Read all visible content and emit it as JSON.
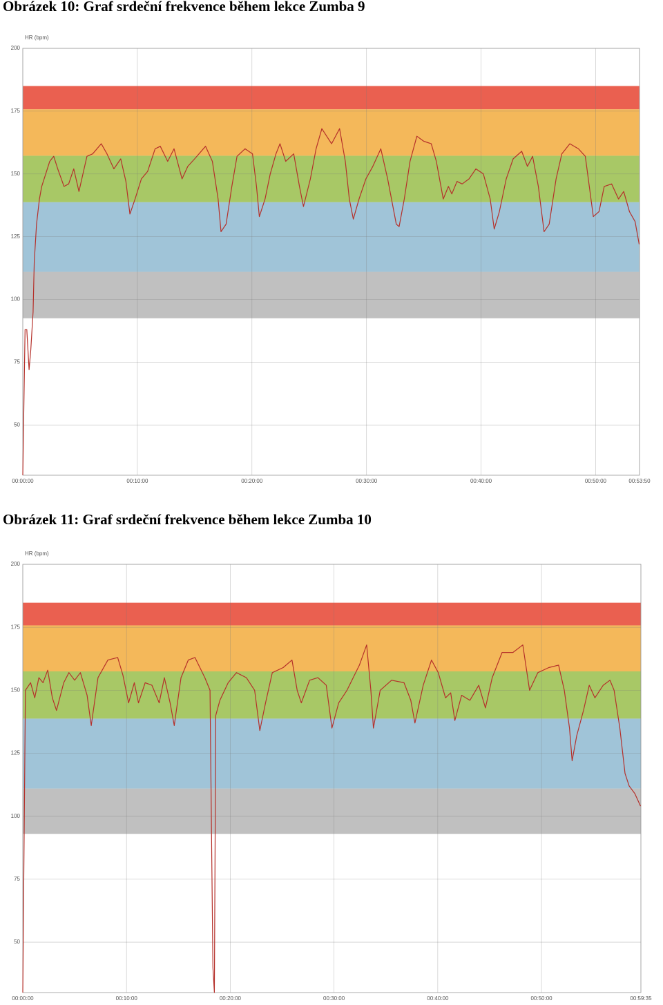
{
  "chart_data": [
    {
      "type": "line",
      "title": "Obrázek 10: Graf srdeční frekvence během lekce Zumba 9",
      "ylabel": "HR (bpm)",
      "color": "#b5302a",
      "grid": true,
      "ylim": [
        30,
        200
      ],
      "yticks": [
        50,
        75,
        100,
        125,
        150,
        175,
        200
      ],
      "xlim": [
        0,
        53.833
      ],
      "xticks": [
        {
          "value": 0,
          "label": "00:00:00"
        },
        {
          "value": 10,
          "label": "00:10:00"
        },
        {
          "value": 20,
          "label": "00:20:00"
        },
        {
          "value": 30,
          "label": "00:30:00"
        },
        {
          "value": 40,
          "label": "00:40:00"
        },
        {
          "value": 50,
          "label": "00:50:00"
        },
        {
          "value": 53.833,
          "label": "00:53:50"
        }
      ],
      "zones": [
        {
          "from": 92.5,
          "to": 111,
          "color": "#c0c0c0"
        },
        {
          "from": 111,
          "to": 138.75,
          "color": "#a0c4d8"
        },
        {
          "from": 138.75,
          "to": 157.25,
          "color": "#a8c866"
        },
        {
          "from": 157.25,
          "to": 175.75,
          "color": "#f4b85a"
        },
        {
          "from": 175.75,
          "to": 185,
          "color": "#ea6050"
        }
      ],
      "x": [
        0,
        0.2,
        0.35,
        0.55,
        0.7,
        0.9,
        1.0,
        1.2,
        1.45,
        1.65,
        2.0,
        2.35,
        2.7,
        3.05,
        3.6,
        4.0,
        4.45,
        4.9,
        5.25,
        5.6,
        6.1,
        6.85,
        7.35,
        7.95,
        8.55,
        9.0,
        9.35,
        9.8,
        10.35,
        10.9,
        11.55,
        12.0,
        12.65,
        13.2,
        13.9,
        14.4,
        15.0,
        15.95,
        16.55,
        17.05,
        17.3,
        17.75,
        18.25,
        18.7,
        19.4,
        20.05,
        20.4,
        20.65,
        21.15,
        21.6,
        22.1,
        22.45,
        22.95,
        23.65,
        24.15,
        24.5,
        25.1,
        25.6,
        26.1,
        26.95,
        27.65,
        28.15,
        28.5,
        28.85,
        29.35,
        29.95,
        30.55,
        31.25,
        31.85,
        32.6,
        32.85,
        33.3,
        33.8,
        34.4,
        35.0,
        35.65,
        36.1,
        36.7,
        37.15,
        37.45,
        37.9,
        38.35,
        38.95,
        39.55,
        40.2,
        40.8,
        41.15,
        41.6,
        42.2,
        42.8,
        43.55,
        44.05,
        44.5,
        45.0,
        45.5,
        45.95,
        46.55,
        47.05,
        47.75,
        48.5,
        49.1,
        49.45,
        49.8,
        50.3,
        50.75,
        51.4,
        52.0,
        52.45,
        52.95,
        53.45,
        53.8
      ],
      "values": [
        30,
        88,
        88,
        72,
        80,
        95,
        115,
        130,
        140,
        145,
        150,
        155,
        157,
        152,
        145,
        146,
        152,
        143,
        150,
        157,
        158,
        162,
        158,
        152,
        156,
        147,
        134,
        140,
        148,
        151,
        160,
        161,
        155,
        160,
        148,
        153,
        156,
        161,
        155,
        140,
        127,
        130,
        145,
        157,
        160,
        158,
        145,
        133,
        140,
        150,
        158,
        162,
        155,
        158,
        145,
        137,
        148,
        160,
        168,
        162,
        168,
        155,
        140,
        132,
        140,
        148,
        153,
        160,
        148,
        130,
        129,
        140,
        155,
        165,
        163,
        162,
        155,
        140,
        145,
        142,
        147,
        146,
        148,
        152,
        150,
        140,
        128,
        135,
        148,
        156,
        159,
        153,
        157,
        145,
        127,
        130,
        148,
        158,
        162,
        160,
        157,
        145,
        133,
        135,
        145,
        146,
        140,
        143,
        135,
        131,
        122
      ]
    },
    {
      "type": "line",
      "title": "Obrázek 11: Graf srdeční frekvence během lekce Zumba 10",
      "ylabel": "HR (bpm)",
      "color": "#b5302a",
      "grid": true,
      "ylim": [
        30,
        200
      ],
      "yticks": [
        50,
        75,
        100,
        125,
        150,
        175,
        200
      ],
      "xlim": [
        0,
        59.583
      ],
      "xticks": [
        {
          "value": 0,
          "label": "00:00:00"
        },
        {
          "value": 10,
          "label": "00:10:00"
        },
        {
          "value": 20,
          "label": "00:20:00"
        },
        {
          "value": 30,
          "label": "00:30:00"
        },
        {
          "value": 40,
          "label": "00:40:00"
        },
        {
          "value": 50,
          "label": "00:50:00"
        },
        {
          "value": 59.583,
          "label": "00:59:35"
        }
      ],
      "zones": [
        {
          "from": 93,
          "to": 111,
          "color": "#c0c0c0"
        },
        {
          "from": 111,
          "to": 138.75,
          "color": "#a0c4d8"
        },
        {
          "from": 138.75,
          "to": 157.5,
          "color": "#a8c866"
        },
        {
          "from": 157.5,
          "to": 175.75,
          "color": "#f4b85a"
        },
        {
          "from": 175.75,
          "to": 184.75,
          "color": "#ea6050"
        }
      ],
      "x": [
        0,
        0.25,
        0.75,
        1.15,
        1.55,
        1.95,
        2.4,
        2.85,
        3.25,
        3.95,
        4.45,
        5.0,
        5.55,
        6.2,
        6.6,
        7.25,
        8.2,
        9.15,
        9.65,
        10.2,
        10.75,
        11.15,
        11.8,
        12.45,
        13.15,
        13.65,
        14.2,
        14.6,
        15.25,
        15.95,
        16.6,
        17.55,
        18.05,
        18.33,
        18.47,
        18.6,
        19.0,
        19.8,
        20.6,
        21.55,
        22.35,
        22.85,
        23.4,
        24.05,
        25.1,
        25.95,
        26.45,
        26.85,
        27.65,
        28.45,
        29.25,
        29.8,
        30.45,
        31.25,
        32.45,
        33.15,
        33.55,
        33.8,
        34.45,
        35.55,
        36.75,
        37.4,
        37.8,
        38.6,
        39.4,
        40.05,
        40.75,
        41.25,
        41.65,
        42.3,
        43.1,
        43.95,
        44.6,
        45.25,
        46.2,
        47.25,
        48.2,
        48.85,
        49.65,
        50.7,
        51.65,
        52.2,
        52.7,
        52.95,
        53.4,
        54.05,
        54.6,
        55.15,
        55.95,
        56.6,
        57.0,
        57.55,
        58.05,
        58.45,
        59.0,
        59.55
      ],
      "values": [
        30,
        150,
        153,
        147,
        155,
        153,
        158,
        147,
        142,
        153,
        157,
        154,
        157,
        148,
        136,
        155,
        162,
        163,
        156,
        145,
        153,
        145,
        153,
        152,
        145,
        155,
        145,
        136,
        155,
        162,
        163,
        155,
        150,
        40,
        30,
        140,
        146,
        153,
        157,
        155,
        150,
        134,
        145,
        157,
        159,
        162,
        150,
        145,
        154,
        155,
        152,
        135,
        145,
        150,
        160,
        168,
        150,
        135,
        150,
        154,
        153,
        146,
        137,
        152,
        162,
        157,
        147,
        149,
        138,
        148,
        146,
        152,
        143,
        155,
        165,
        165,
        168,
        150,
        157,
        159,
        160,
        150,
        135,
        122,
        132,
        142,
        152,
        147,
        152,
        154,
        150,
        135,
        117,
        112,
        109,
        104
      ]
    }
  ]
}
